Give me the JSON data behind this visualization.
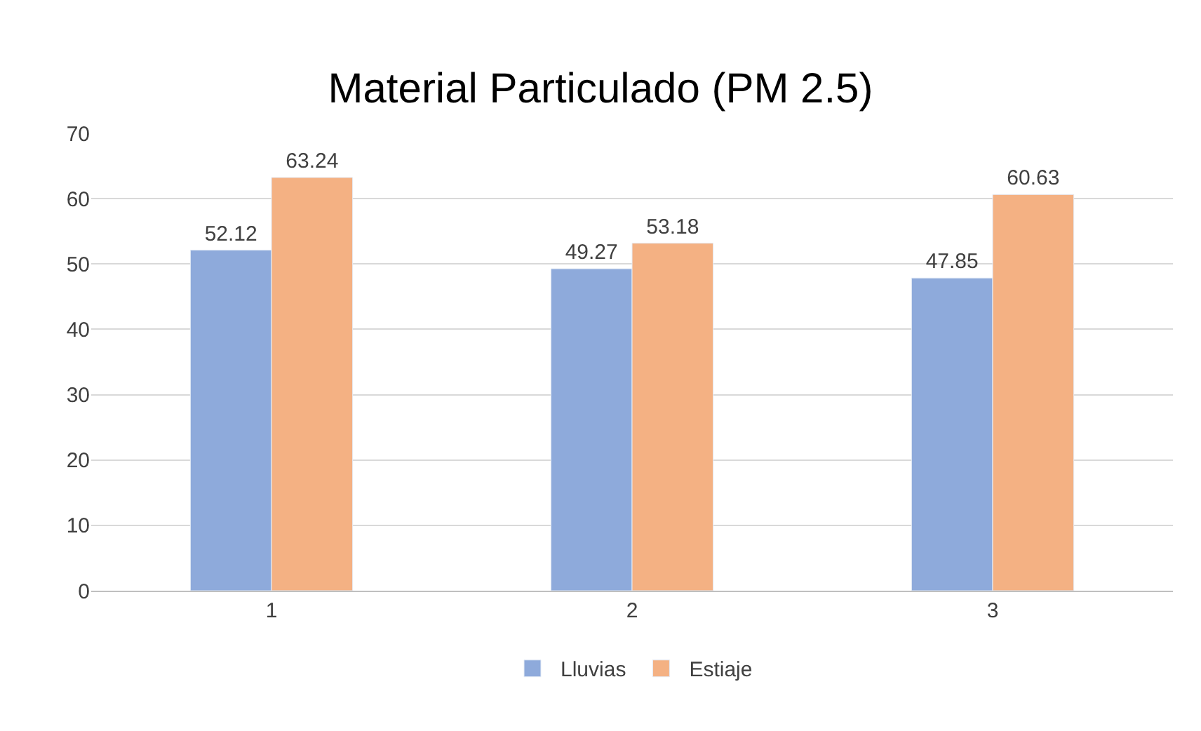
{
  "chart_data": {
    "type": "bar",
    "title": "Material Particulado (PM 2.5)",
    "categories": [
      "1",
      "2",
      "3"
    ],
    "series": [
      {
        "name": "Lluvias",
        "color": "#8eaadb",
        "values": [
          52.12,
          49.27,
          47.85
        ]
      },
      {
        "name": "Estiaje",
        "color": "#f4b183",
        "values": [
          63.24,
          53.18,
          60.63
        ]
      }
    ],
    "ylim": [
      0,
      70
    ],
    "yticks": [
      0,
      10,
      20,
      30,
      40,
      50,
      60,
      70
    ],
    "grid": "y",
    "legend": "bottom",
    "data_labels": true
  }
}
